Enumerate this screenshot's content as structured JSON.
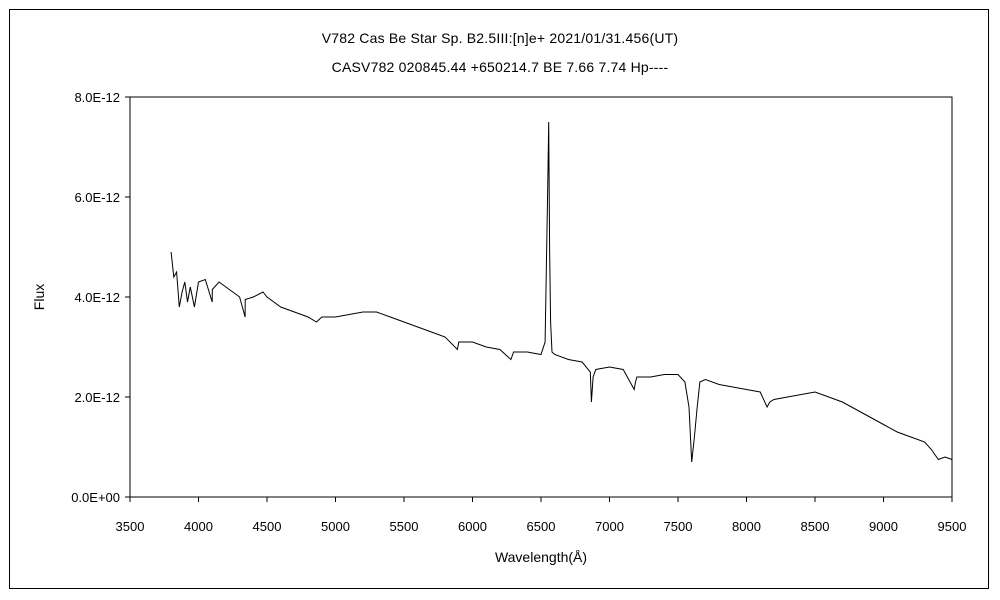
{
  "chart_data": {
    "type": "line",
    "title": "V782 Cas   Be Star   Sp. B2.5III:[n]e+   2021/01/31.456(UT)",
    "subtitle": "CASV782 020845.44 +650214.7 BE 7.66 7.74 Hp----",
    "xlabel": "Wavelength(Å)",
    "ylabel": "Flux",
    "xlim": [
      3500,
      9500
    ],
    "ylim": [
      0,
      8e-12
    ],
    "x_ticks": [
      3500,
      4000,
      4500,
      5000,
      5500,
      6000,
      6500,
      7000,
      7500,
      8000,
      8500,
      9000,
      9500
    ],
    "x_tick_labels": [
      "3500",
      "4000",
      "4500",
      "5000",
      "5500",
      "6000",
      "6500",
      "7000",
      "7500",
      "8000",
      "8500",
      "9000",
      "9500"
    ],
    "y_ticks": [
      0,
      2e-12,
      4e-12,
      6e-12,
      8e-12
    ],
    "y_tick_labels": [
      "0.0E+00",
      "2.0E-12",
      "4.0E-12",
      "6.0E-12",
      "8.0E-12"
    ],
    "grid": false,
    "color": "#000000",
    "series": [
      {
        "x": [
          3800,
          3820,
          3840,
          3860,
          3880,
          3900,
          3920,
          3940,
          3970,
          4000,
          4050,
          4100,
          4101,
          4150,
          4200,
          4250,
          4300,
          4340,
          4341,
          4400,
          4471,
          4500,
          4600,
          4700,
          4800,
          4861,
          4900,
          5000,
          5100,
          5200,
          5300,
          5400,
          5500,
          5600,
          5700,
          5800,
          5890,
          5900,
          6000,
          6100,
          6200,
          6280,
          6300,
          6400,
          6500,
          6530,
          6550,
          6556,
          6563,
          6570,
          6580,
          6600,
          6700,
          6800,
          6860,
          6868,
          6880,
          6900,
          7000,
          7100,
          7180,
          7190,
          7200,
          7300,
          7400,
          7500,
          7550,
          7580,
          7600,
          7620,
          7640,
          7660,
          7700,
          7800,
          7900,
          8000,
          8100,
          8150,
          8170,
          8200,
          8300,
          8400,
          8500,
          8600,
          8700,
          8800,
          8900,
          9000,
          9100,
          9200,
          9300,
          9350,
          9400,
          9450,
          9500
        ],
        "y": [
          4.9e-12,
          4.4e-12,
          4.5e-12,
          3.8e-12,
          4.1e-12,
          4.3e-12,
          3.9e-12,
          4.2e-12,
          3.8e-12,
          4.3e-12,
          4.35e-12,
          3.9e-12,
          4.15e-12,
          4.3e-12,
          4.2e-12,
          4.1e-12,
          4e-12,
          3.6e-12,
          3.95e-12,
          4e-12,
          4.1e-12,
          4e-12,
          3.8e-12,
          3.7e-12,
          3.6e-12,
          3.5e-12,
          3.6e-12,
          3.6e-12,
          3.65e-12,
          3.7e-12,
          3.7e-12,
          3.6e-12,
          3.5e-12,
          3.4e-12,
          3.3e-12,
          3.2e-12,
          2.95e-12,
          3.1e-12,
          3.1e-12,
          3e-12,
          2.95e-12,
          2.75e-12,
          2.9e-12,
          2.9e-12,
          2.85e-12,
          3.1e-12,
          6.3e-12,
          7.5e-12,
          5e-12,
          3.5e-12,
          2.9e-12,
          2.85e-12,
          2.75e-12,
          2.7e-12,
          2.5e-12,
          1.9e-12,
          2.4e-12,
          2.55e-12,
          2.6e-12,
          2.55e-12,
          2.15e-12,
          2.3e-12,
          2.4e-12,
          2.4e-12,
          2.45e-12,
          2.45e-12,
          2.3e-12,
          1.8e-12,
          7e-13,
          1.2e-12,
          1.8e-12,
          2.3e-12,
          2.35e-12,
          2.25e-12,
          2.2e-12,
          2.15e-12,
          2.1e-12,
          1.8e-12,
          1.9e-12,
          1.95e-12,
          2e-12,
          2.05e-12,
          2.1e-12,
          2e-12,
          1.9e-12,
          1.75e-12,
          1.6e-12,
          1.45e-12,
          1.3e-12,
          1.2e-12,
          1.1e-12,
          9.5e-13,
          7.5e-13,
          8e-13,
          7.5e-13
        ]
      }
    ]
  }
}
